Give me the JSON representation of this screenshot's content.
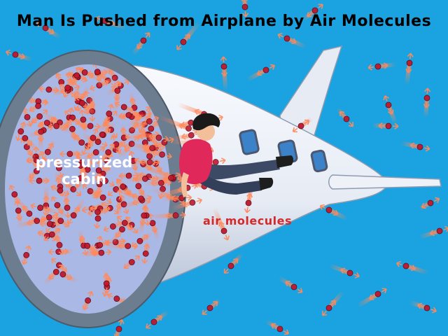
{
  "title": "Man Is Pushed from Airplane by Air Molecules",
  "labels": {
    "cabin_line1": "pressurized",
    "cabin_line2": "cabin",
    "air_molecules": "air molecules"
  },
  "colors": {
    "sky": "#1aa3e0",
    "fuselage": "#eaeef6",
    "fuselage_shadow": "#b4c0d6",
    "cabin_interior": "#aab8e6",
    "rim": "#6c7d90",
    "molecule": "#c0182e",
    "streak": "#ff8a5c",
    "shirt": "#e0285a",
    "pants": "#3d4a66",
    "hair": "#1a1a1a",
    "skin": "#f2bf9a"
  }
}
